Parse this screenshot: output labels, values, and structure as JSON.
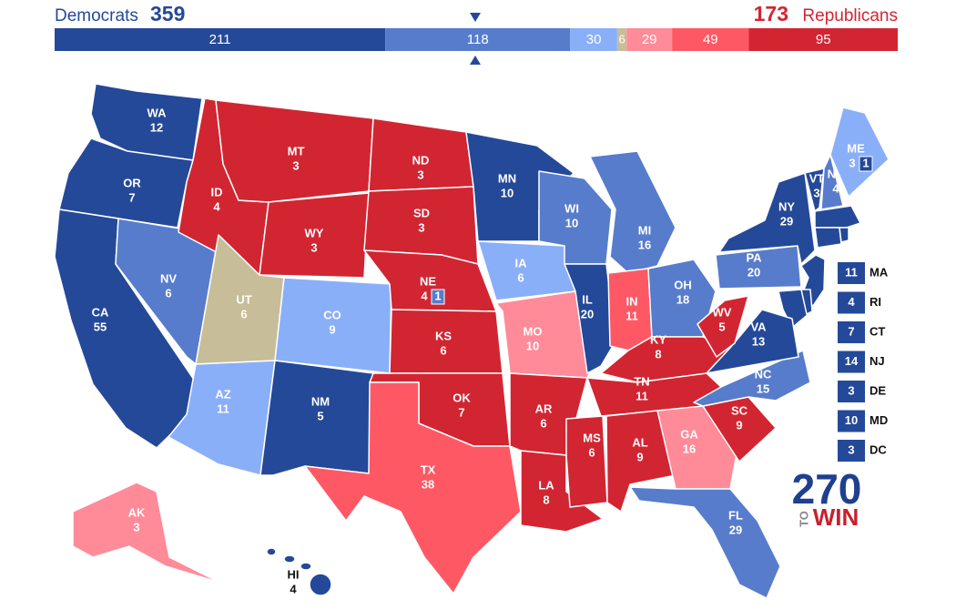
{
  "header": {
    "dem_label": "Democrats",
    "dem_total": 359,
    "rep_total": 173,
    "rep_label": "Republicans"
  },
  "bar": {
    "segments": [
      {
        "value": 211,
        "color": "#244999"
      },
      {
        "value": 118,
        "color": "#577ccc"
      },
      {
        "value": 30,
        "color": "#8aaff9"
      },
      {
        "value": 6,
        "color": "#c8bd99"
      },
      {
        "value": 29,
        "color": "#ff8b98"
      },
      {
        "value": 49,
        "color": "#ff5865"
      },
      {
        "value": 95,
        "color": "#d22532"
      }
    ]
  },
  "states": [
    {
      "abbr": "WA",
      "ev": 12
    },
    {
      "abbr": "OR",
      "ev": 7
    },
    {
      "abbr": "CA",
      "ev": 55
    },
    {
      "abbr": "NV",
      "ev": 6
    },
    {
      "abbr": "ID",
      "ev": 4
    },
    {
      "abbr": "MT",
      "ev": 3
    },
    {
      "abbr": "WY",
      "ev": 3
    },
    {
      "abbr": "UT",
      "ev": 6
    },
    {
      "abbr": "CO",
      "ev": 9
    },
    {
      "abbr": "AZ",
      "ev": 11
    },
    {
      "abbr": "NM",
      "ev": 5
    },
    {
      "abbr": "ND",
      "ev": 3
    },
    {
      "abbr": "SD",
      "ev": 3
    },
    {
      "abbr": "NE",
      "ev": 4,
      "district_ev": 1
    },
    {
      "abbr": "KS",
      "ev": 6
    },
    {
      "abbr": "OK",
      "ev": 7
    },
    {
      "abbr": "TX",
      "ev": 38
    },
    {
      "abbr": "MN",
      "ev": 10
    },
    {
      "abbr": "IA",
      "ev": 6
    },
    {
      "abbr": "MO",
      "ev": 10
    },
    {
      "abbr": "AR",
      "ev": 6
    },
    {
      "abbr": "LA",
      "ev": 8
    },
    {
      "abbr": "WI",
      "ev": 10
    },
    {
      "abbr": "IL",
      "ev": 20
    },
    {
      "abbr": "MI",
      "ev": 16
    },
    {
      "abbr": "IN",
      "ev": 11
    },
    {
      "abbr": "OH",
      "ev": 18
    },
    {
      "abbr": "KY",
      "ev": 8
    },
    {
      "abbr": "TN",
      "ev": 11
    },
    {
      "abbr": "MS",
      "ev": 6
    },
    {
      "abbr": "AL",
      "ev": 9
    },
    {
      "abbr": "GA",
      "ev": 16
    },
    {
      "abbr": "FL",
      "ev": 29
    },
    {
      "abbr": "SC",
      "ev": 9
    },
    {
      "abbr": "NC",
      "ev": 15
    },
    {
      "abbr": "VA",
      "ev": 13
    },
    {
      "abbr": "WV",
      "ev": 5
    },
    {
      "abbr": "PA",
      "ev": 20
    },
    {
      "abbr": "NY",
      "ev": 29
    },
    {
      "abbr": "VT",
      "ev": 3
    },
    {
      "abbr": "NH",
      "ev": 4
    },
    {
      "abbr": "ME",
      "ev": 3,
      "district_ev": 1
    },
    {
      "abbr": "AK",
      "ev": 3
    },
    {
      "abbr": "HI",
      "ev": 4
    }
  ],
  "small_states": [
    {
      "abbr": "MA",
      "ev": 11
    },
    {
      "abbr": "RI",
      "ev": 4
    },
    {
      "abbr": "CT",
      "ev": 7
    },
    {
      "abbr": "NJ",
      "ev": 14
    },
    {
      "abbr": "DE",
      "ev": 3
    },
    {
      "abbr": "MD",
      "ev": 10
    },
    {
      "abbr": "DC",
      "ev": 3
    }
  ],
  "logo": {
    "number": "270",
    "to": "TO",
    "win": "WIN"
  }
}
